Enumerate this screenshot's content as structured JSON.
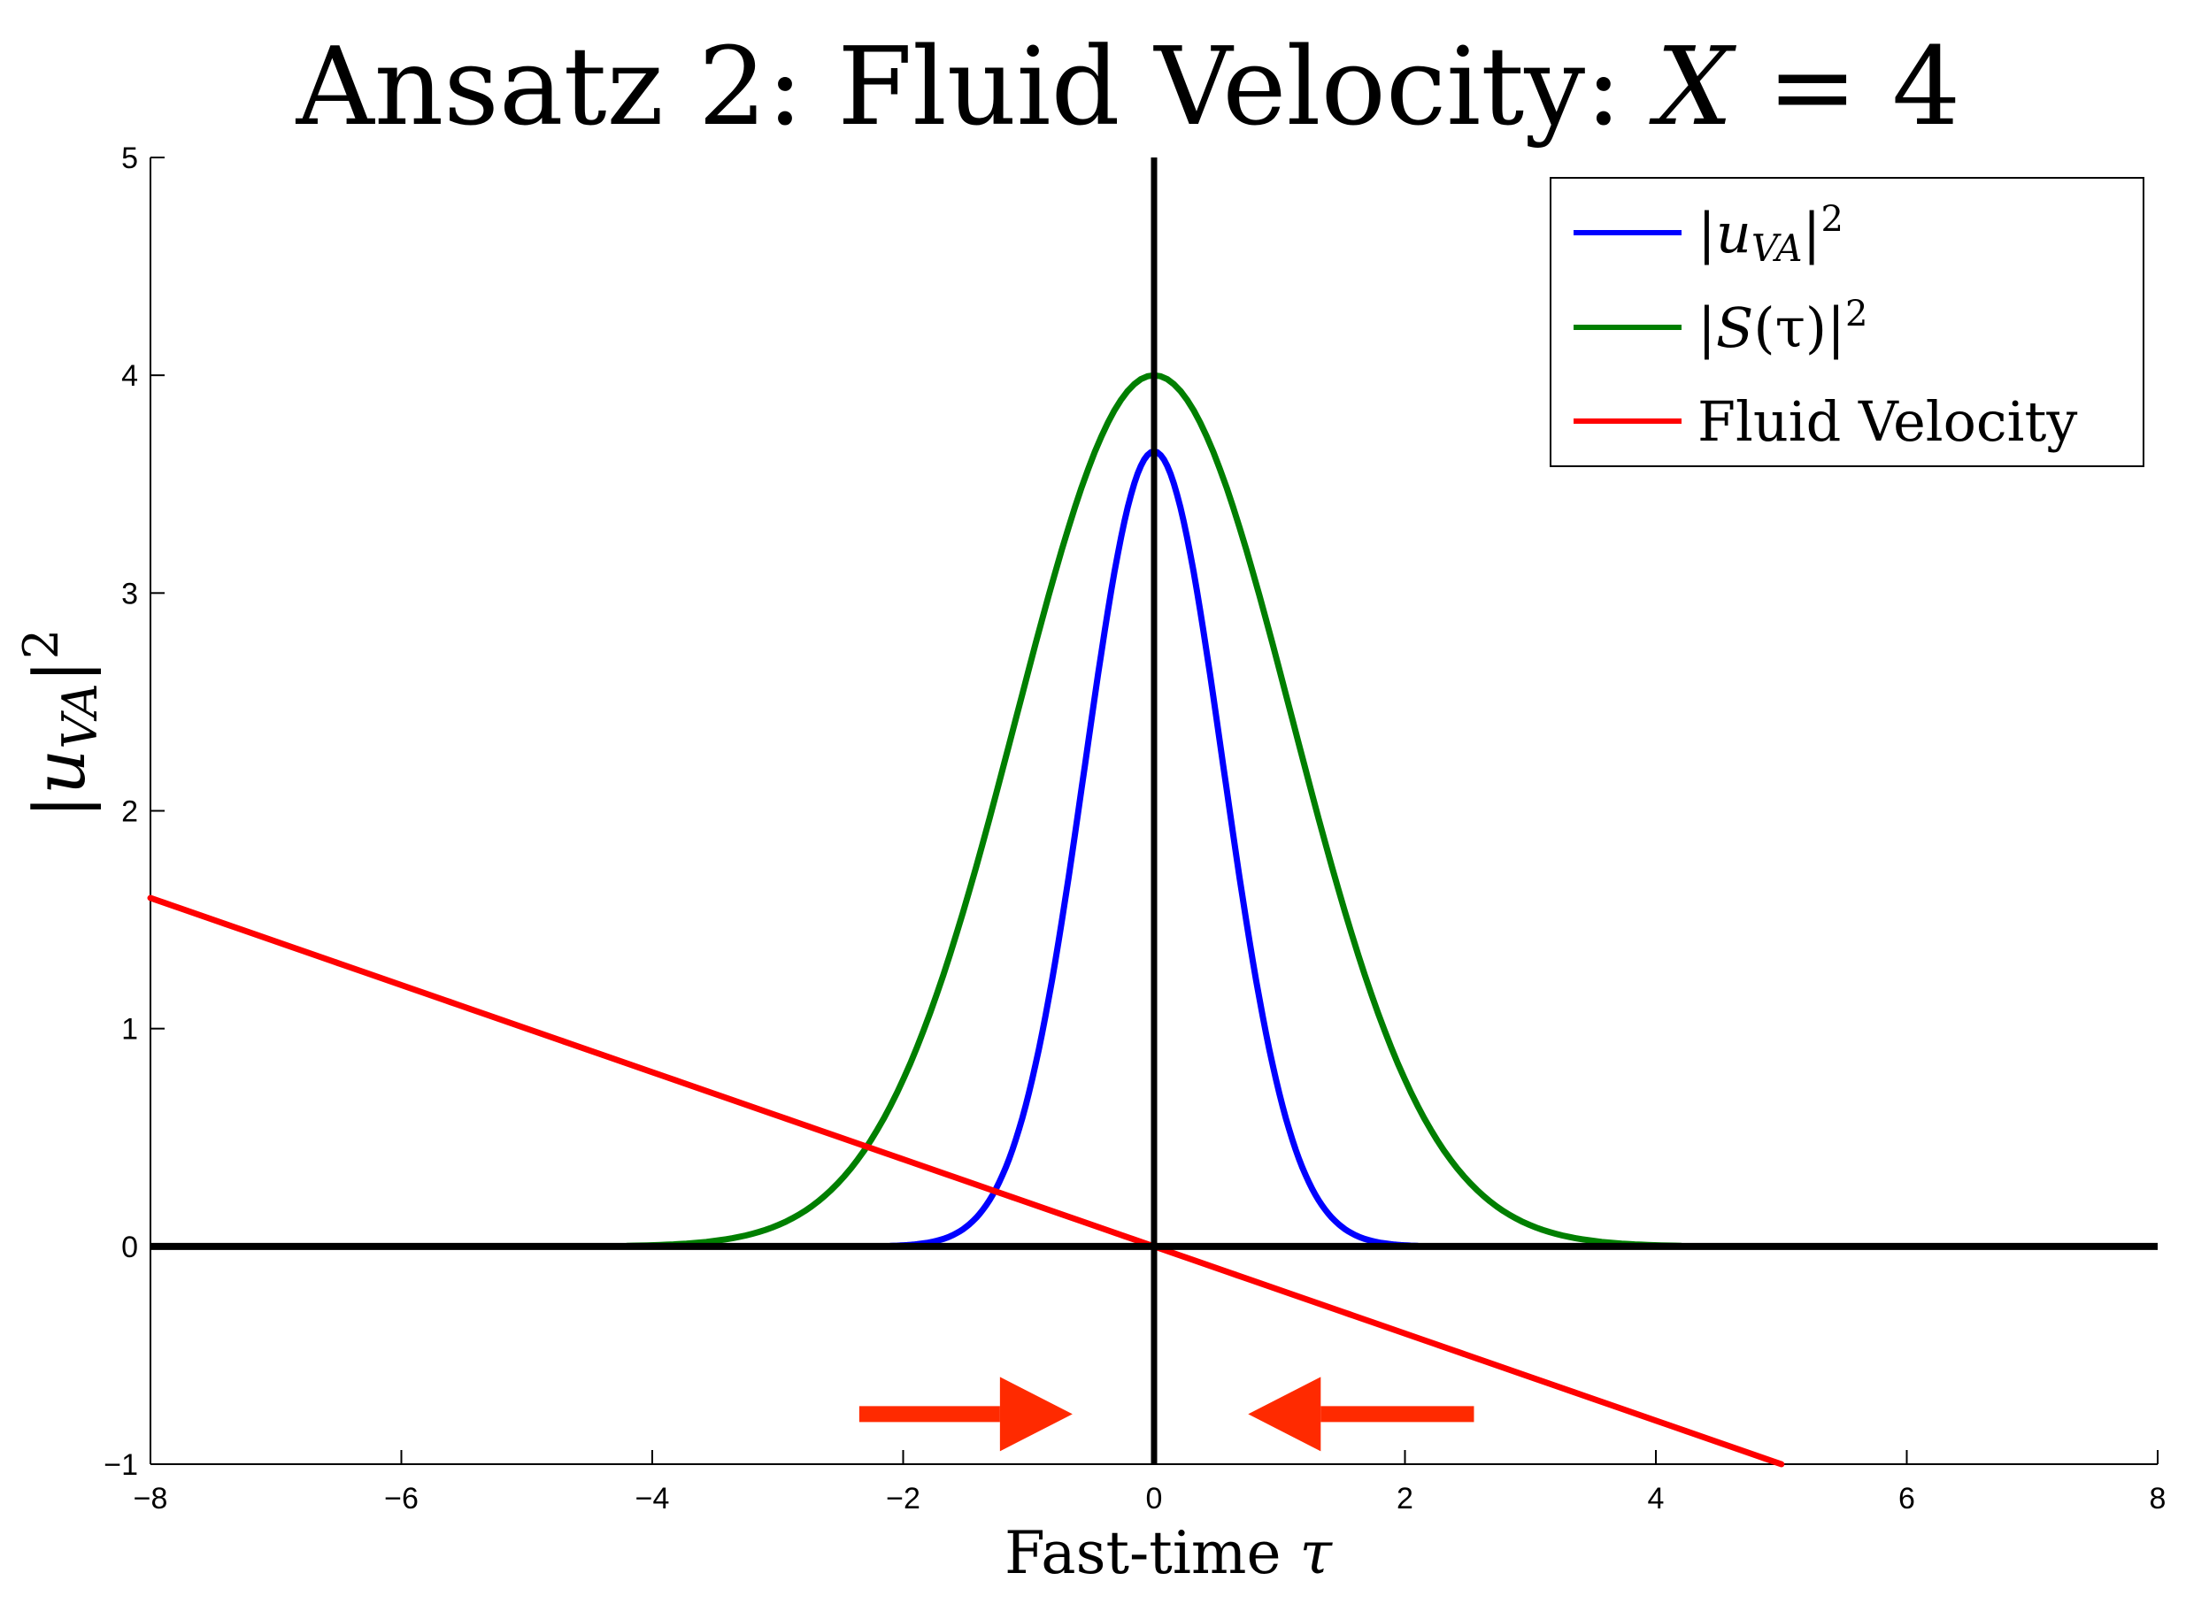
{
  "chart_data": {
    "type": "line",
    "title": {
      "prefix": "Ansatz 2: Fluid Velocity: ",
      "variable": "X",
      "relation": " = 4"
    },
    "xlabel": {
      "text": "Fast-time ",
      "symbol": "τ"
    },
    "ylabel": {
      "open": "|",
      "var": "u",
      "sub": "VA",
      "close": "|",
      "sup": "2"
    },
    "xlim": [
      -8,
      8
    ],
    "ylim": [
      -1,
      5
    ],
    "xticks": [
      -8,
      -6,
      -4,
      -2,
      0,
      2,
      4,
      6,
      8
    ],
    "yticks": [
      -1,
      0,
      1,
      2,
      3,
      4,
      5
    ],
    "xtick_labels": [
      "−8",
      "−6",
      "−4",
      "−2",
      "0",
      "2",
      "4",
      "6",
      "8"
    ],
    "ytick_labels": [
      "−1",
      "0",
      "1",
      "2",
      "3",
      "4",
      "5"
    ],
    "grid": false,
    "reference_lines": {
      "horizontal_y": 0,
      "vertical_x": 0,
      "color": "#000000"
    },
    "series": [
      {
        "name": "|u_VA|^2",
        "color": "#0000ff",
        "function": "gaussian",
        "amplitude": 3.65,
        "center": 0,
        "sigma": 0.55,
        "x_range": [
          -2.1,
          2.1
        ]
      },
      {
        "name": "|S(τ)|^2",
        "color": "#007f00",
        "function": "gaussian",
        "amplitude": 4.0,
        "center": 0,
        "sigma": 1.1,
        "x_range": [
          -4.2,
          4.2
        ]
      },
      {
        "name": "Fluid Velocity",
        "color": "#ff0000",
        "function": "linear",
        "slope": -0.2,
        "intercept": 0,
        "x_range": [
          -8,
          5
        ]
      }
    ],
    "legend": {
      "placement": "top-right",
      "entries": [
        {
          "open": "|",
          "var": "u",
          "sub": "VA",
          "close": "|",
          "sup": "2"
        },
        {
          "open": "|",
          "var": "S",
          "arg": "(τ)",
          "close": "|",
          "sup": "2"
        },
        {
          "text": "Fluid Velocity"
        }
      ]
    },
    "annotations": [
      {
        "type": "arrow",
        "direction": "right",
        "color": "#ff2a00",
        "x_from": -2.35,
        "x_to": -0.65,
        "y": -0.77
      },
      {
        "type": "arrow",
        "direction": "left",
        "color": "#ff2a00",
        "x_from": 2.55,
        "x_to": 0.75,
        "y": -0.77
      }
    ]
  }
}
